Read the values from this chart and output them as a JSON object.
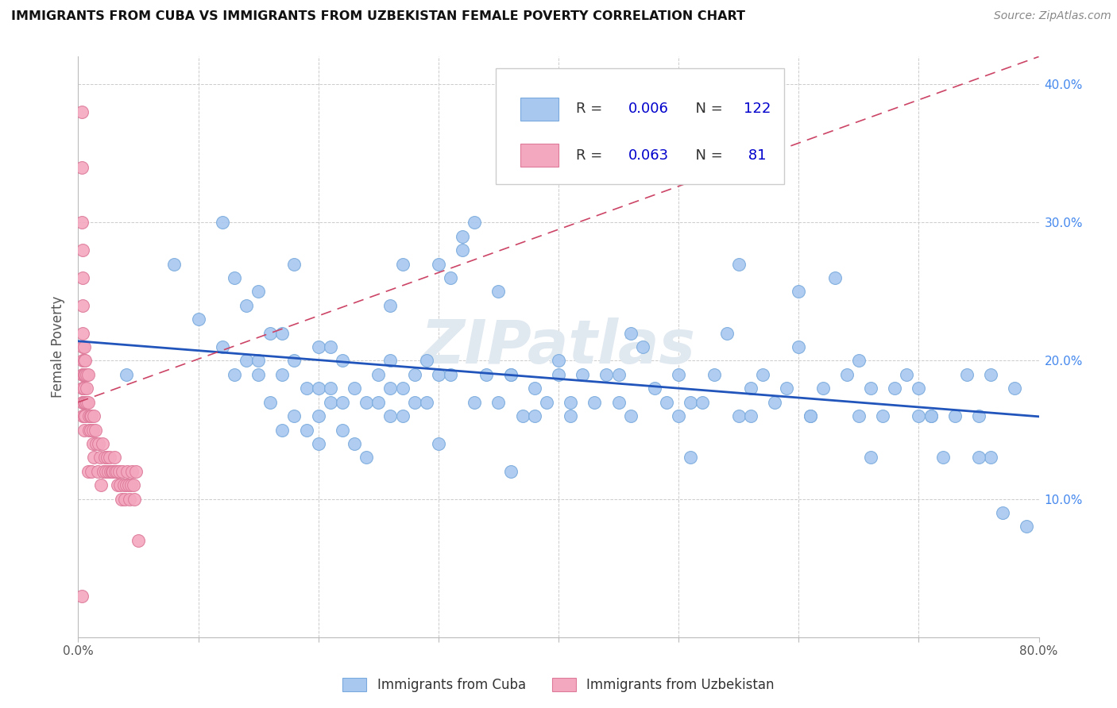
{
  "title": "IMMIGRANTS FROM CUBA VS IMMIGRANTS FROM UZBEKISTAN FEMALE POVERTY CORRELATION CHART",
  "source": "Source: ZipAtlas.com",
  "ylabel": "Female Poverty",
  "xlim": [
    0.0,
    0.8
  ],
  "ylim": [
    0.0,
    0.42
  ],
  "ytick_vals": [
    0.0,
    0.1,
    0.2,
    0.3,
    0.4
  ],
  "ytick_labels": [
    "",
    "10.0%",
    "20.0%",
    "30.0%",
    "40.0%"
  ],
  "xtick_vals": [
    0.0,
    0.1,
    0.2,
    0.3,
    0.4,
    0.5,
    0.6,
    0.7,
    0.8
  ],
  "xtick_labels": [
    "0.0%",
    "",
    "",
    "",
    "",
    "",
    "",
    "",
    "80.0%"
  ],
  "cuba_color": "#a8c8f0",
  "cuba_edge": "#7aaadd",
  "uzbek_color": "#f4a8c0",
  "uzbek_edge": "#dd7a9a",
  "trend_cuba_color": "#2255bb",
  "trend_uzbek_color": "#cc4466",
  "watermark": "ZIPatlas",
  "watermark_color": "#e0e8f0",
  "legend_R_cuba": "0.006",
  "legend_N_cuba": "122",
  "legend_R_uzbek": "0.063",
  "legend_N_uzbek": " 81",
  "legend_color_R": "#0000cc",
  "legend_color_N": "#0000cc",
  "legend_label_color": "#333333",
  "cuba_x": [
    0.04,
    0.08,
    0.1,
    0.12,
    0.12,
    0.13,
    0.13,
    0.14,
    0.14,
    0.15,
    0.15,
    0.15,
    0.16,
    0.16,
    0.17,
    0.17,
    0.17,
    0.18,
    0.18,
    0.18,
    0.19,
    0.19,
    0.2,
    0.2,
    0.2,
    0.2,
    0.21,
    0.21,
    0.21,
    0.22,
    0.22,
    0.22,
    0.23,
    0.23,
    0.24,
    0.24,
    0.25,
    0.25,
    0.26,
    0.26,
    0.26,
    0.27,
    0.27,
    0.27,
    0.28,
    0.28,
    0.29,
    0.29,
    0.3,
    0.3,
    0.31,
    0.32,
    0.32,
    0.33,
    0.33,
    0.34,
    0.35,
    0.36,
    0.36,
    0.37,
    0.38,
    0.38,
    0.39,
    0.4,
    0.41,
    0.42,
    0.43,
    0.44,
    0.45,
    0.46,
    0.47,
    0.48,
    0.49,
    0.5,
    0.51,
    0.52,
    0.53,
    0.54,
    0.55,
    0.56,
    0.57,
    0.58,
    0.59,
    0.6,
    0.61,
    0.62,
    0.63,
    0.64,
    0.65,
    0.66,
    0.67,
    0.68,
    0.69,
    0.7,
    0.71,
    0.72,
    0.73,
    0.74,
    0.75,
    0.76,
    0.77,
    0.78,
    0.79,
    0.3,
    0.35,
    0.4,
    0.45,
    0.5,
    0.55,
    0.6,
    0.65,
    0.7,
    0.75,
    0.26,
    0.31,
    0.36,
    0.41,
    0.46,
    0.51,
    0.56,
    0.61,
    0.66,
    0.71,
    0.76
  ],
  "cuba_y": [
    0.19,
    0.27,
    0.23,
    0.21,
    0.3,
    0.19,
    0.26,
    0.2,
    0.24,
    0.19,
    0.2,
    0.25,
    0.17,
    0.22,
    0.15,
    0.19,
    0.22,
    0.16,
    0.2,
    0.27,
    0.15,
    0.18,
    0.14,
    0.16,
    0.18,
    0.21,
    0.17,
    0.18,
    0.21,
    0.15,
    0.17,
    0.2,
    0.14,
    0.18,
    0.13,
    0.17,
    0.17,
    0.19,
    0.16,
    0.18,
    0.2,
    0.16,
    0.18,
    0.27,
    0.17,
    0.19,
    0.17,
    0.2,
    0.19,
    0.14,
    0.19,
    0.28,
    0.29,
    0.3,
    0.17,
    0.19,
    0.17,
    0.19,
    0.12,
    0.16,
    0.16,
    0.18,
    0.17,
    0.19,
    0.17,
    0.19,
    0.17,
    0.19,
    0.19,
    0.22,
    0.21,
    0.18,
    0.17,
    0.19,
    0.17,
    0.17,
    0.19,
    0.22,
    0.16,
    0.18,
    0.19,
    0.17,
    0.18,
    0.21,
    0.16,
    0.18,
    0.26,
    0.19,
    0.16,
    0.18,
    0.16,
    0.18,
    0.19,
    0.18,
    0.16,
    0.13,
    0.16,
    0.19,
    0.16,
    0.13,
    0.09,
    0.18,
    0.08,
    0.27,
    0.25,
    0.2,
    0.17,
    0.16,
    0.27,
    0.25,
    0.2,
    0.16,
    0.13,
    0.24,
    0.26,
    0.19,
    0.16,
    0.16,
    0.13,
    0.16,
    0.16,
    0.13,
    0.16,
    0.19
  ],
  "uzbek_x": [
    0.003,
    0.003,
    0.003,
    0.003,
    0.004,
    0.004,
    0.004,
    0.004,
    0.004,
    0.004,
    0.004,
    0.004,
    0.004,
    0.004,
    0.004,
    0.004,
    0.004,
    0.005,
    0.005,
    0.005,
    0.005,
    0.005,
    0.005,
    0.005,
    0.005,
    0.006,
    0.006,
    0.006,
    0.006,
    0.007,
    0.007,
    0.007,
    0.008,
    0.008,
    0.008,
    0.009,
    0.009,
    0.01,
    0.01,
    0.011,
    0.011,
    0.012,
    0.012,
    0.013,
    0.013,
    0.014,
    0.015,
    0.016,
    0.017,
    0.018,
    0.019,
    0.02,
    0.021,
    0.022,
    0.023,
    0.024,
    0.025,
    0.026,
    0.027,
    0.028,
    0.029,
    0.03,
    0.031,
    0.032,
    0.033,
    0.034,
    0.035,
    0.036,
    0.037,
    0.038,
    0.039,
    0.04,
    0.041,
    0.042,
    0.043,
    0.044,
    0.045,
    0.046,
    0.047,
    0.048,
    0.05
  ],
  "uzbek_y": [
    0.38,
    0.34,
    0.3,
    0.03,
    0.28,
    0.26,
    0.24,
    0.22,
    0.21,
    0.2,
    0.19,
    0.19,
    0.18,
    0.18,
    0.17,
    0.17,
    0.16,
    0.21,
    0.2,
    0.19,
    0.19,
    0.18,
    0.17,
    0.16,
    0.15,
    0.2,
    0.19,
    0.17,
    0.16,
    0.19,
    0.18,
    0.17,
    0.19,
    0.12,
    0.17,
    0.16,
    0.15,
    0.16,
    0.15,
    0.16,
    0.12,
    0.15,
    0.14,
    0.16,
    0.13,
    0.15,
    0.14,
    0.12,
    0.14,
    0.13,
    0.11,
    0.14,
    0.12,
    0.13,
    0.12,
    0.13,
    0.12,
    0.13,
    0.12,
    0.12,
    0.12,
    0.13,
    0.12,
    0.12,
    0.11,
    0.12,
    0.11,
    0.1,
    0.12,
    0.11,
    0.1,
    0.11,
    0.12,
    0.11,
    0.1,
    0.11,
    0.12,
    0.11,
    0.1,
    0.12,
    0.07
  ]
}
